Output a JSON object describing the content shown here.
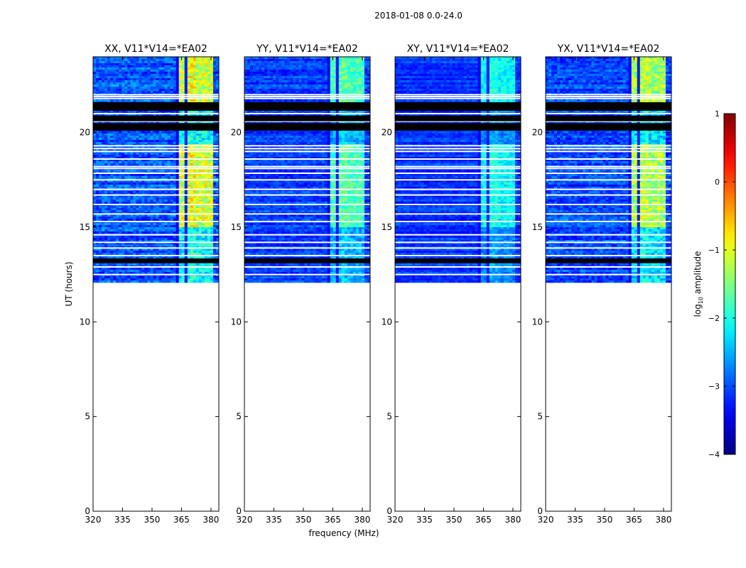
{
  "chart_data": {
    "type": "heatmap",
    "suptitle": "2018-01-08 0.0-24.0",
    "xlabel": "frequency (MHz)",
    "ylabel": "UT (hours)",
    "xlim": [
      320,
      384
    ],
    "ylim": [
      0,
      24
    ],
    "xticks": [
      320,
      335,
      350,
      365,
      380
    ],
    "yticks": [
      0,
      5,
      10,
      15,
      20
    ],
    "data_time_range_hours": [
      12.1,
      24.0
    ],
    "bright_band_mhz": [
      362.5,
      381.5
    ],
    "colorbar": {
      "label_main": "log",
      "label_sub": "10",
      "label_rest": " amplitude",
      "range": [
        -4,
        1
      ],
      "ticks": [
        -4,
        -3,
        -2,
        -1,
        0,
        1
      ],
      "tick_labels": [
        "−4",
        "−3",
        "−2",
        "−1",
        "0",
        "1"
      ],
      "colormap": "jet"
    },
    "panels": [
      {
        "title": "XX, V11*V14=*EA02",
        "level": 1.0
      },
      {
        "title": "YY, V11*V14=*EA02",
        "level": 0.7
      },
      {
        "title": "XY, V11*V14=*EA02",
        "level": 0.55
      },
      {
        "title": "YX, V11*V14=*EA02",
        "level": 0.9
      }
    ],
    "flagged_rows_hours": [
      22.0,
      21.9,
      21.8,
      21.45,
      21.25,
      21.0,
      20.8,
      20.6,
      20.35,
      20.2,
      19.3,
      19.15,
      19.0,
      18.6,
      18.2,
      18.1,
      17.85,
      17.5,
      17.0,
      16.7,
      16.2,
      15.7,
      15.3,
      14.6,
      14.2,
      13.9,
      13.5,
      13.3,
      13.2,
      12.9,
      12.5
    ],
    "black_rows_hours": [
      [
        21.15,
        21.45
      ],
      [
        20.6,
        20.9
      ],
      [
        20.1,
        20.5
      ],
      [
        13.1,
        13.35
      ]
    ]
  }
}
